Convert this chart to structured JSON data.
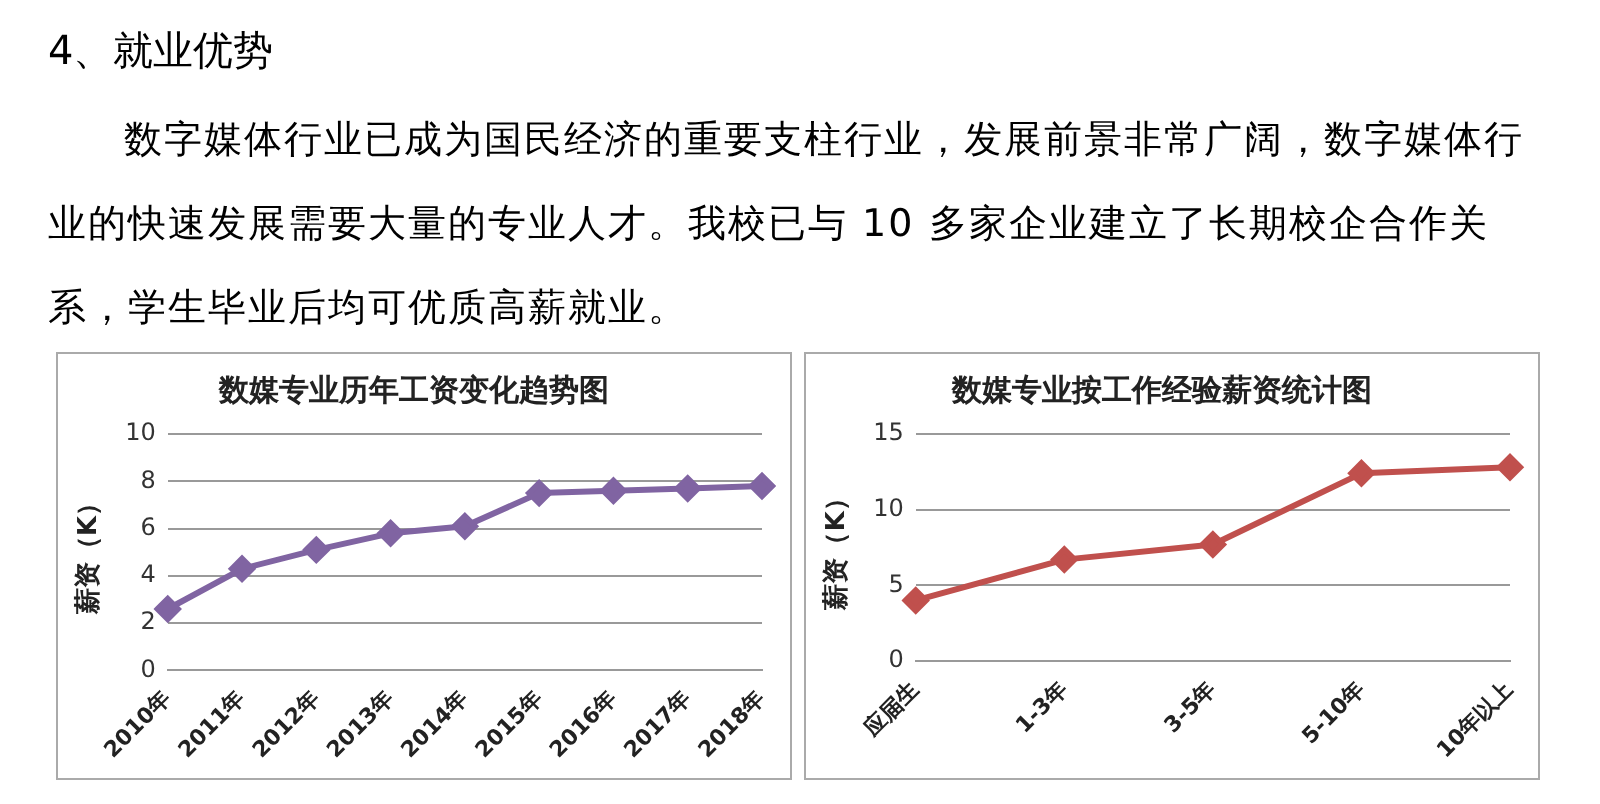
{
  "chart_data": [
    {
      "type": "line",
      "title": "数媒专业历年工资变化趋势图",
      "ylabel": "薪资（K）",
      "annotations": [
        "4、就业优势",
        "数字媒体行业已成为国民经济的重要支柱行业，发展前景非常广阔，数字媒体行业的快速发展需要大量的专业人才。我校已与 10 多家企业建立了长期校企合作关系，学生毕业后均可优质高薪就业。"
      ],
      "categories": [
        "2010年",
        "2011年",
        "2012年",
        "2013年",
        "2014年",
        "2015年",
        "2016年",
        "2017年",
        "2018年"
      ],
      "series": [
        {
          "color": "#8064a2",
          "values": [
            2.6,
            4.3,
            5.1,
            5.8,
            6.1,
            7.5,
            7.6,
            7.7,
            7.8
          ]
        }
      ],
      "ylim": [
        0,
        10
      ],
      "yticks": [
        0,
        2,
        4,
        6,
        8,
        10
      ],
      "grid": "y",
      "legend": false,
      "marker": "diamond",
      "line_style": "solid"
    },
    {
      "type": "line",
      "title": "数媒专业按工作经验薪资统计图",
      "ylabel": "薪资（K）",
      "categories": [
        "应届生",
        "1-3年",
        "3-5年",
        "5-10年",
        "10年以上"
      ],
      "series": [
        {
          "color": "#c0504d",
          "values": [
            4.0,
            6.7,
            7.7,
            12.4,
            12.8
          ]
        }
      ],
      "ylim": [
        0,
        15
      ],
      "yticks": [
        0,
        5,
        10,
        15
      ],
      "grid": "y",
      "legend": false,
      "marker": "diamond",
      "line_style": "solid"
    }
  ]
}
